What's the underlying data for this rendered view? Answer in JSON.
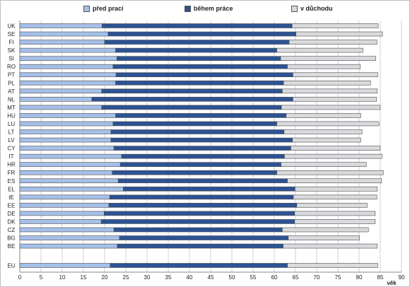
{
  "chart_data": {
    "type": "bar",
    "orientation": "horizontal",
    "stacked": true,
    "xlabel": "věk",
    "xlim": [
      0,
      90
    ],
    "xticks": [
      0,
      5,
      10,
      15,
      20,
      25,
      30,
      35,
      40,
      45,
      50,
      55,
      60,
      65,
      70,
      75,
      80,
      85,
      90
    ],
    "grid": "vertical",
    "legend_position": "top",
    "categories": [
      "UK",
      "SE",
      "FI",
      "SK",
      "SI",
      "RO",
      "PT",
      "PL",
      "AT",
      "NL",
      "MT",
      "HU",
      "LU",
      "LT",
      "LV",
      "CY",
      "IT",
      "HR",
      "FR",
      "ES",
      "EL",
      "IE",
      "EE",
      "DE",
      "DK",
      "CZ",
      "BG",
      "BE",
      "EU"
    ],
    "series": [
      {
        "name": "před prací",
        "color": "#a5c0e8",
        "values": [
          19.4,
          20.8,
          20.0,
          22.6,
          22.9,
          22.0,
          22.7,
          22.6,
          19.3,
          17.0,
          19.3,
          22.6,
          22.0,
          21.5,
          21.5,
          22.2,
          24.0,
          23.7,
          21.8,
          23.2,
          24.4,
          21.2,
          21.0,
          19.9,
          19.2,
          22.2,
          23.5,
          23.0,
          21.3
        ]
      },
      {
        "name": "během práce",
        "color": "#2c5393",
        "values": [
          44.8,
          44.3,
          43.5,
          38.0,
          38.6,
          41.1,
          41.7,
          39.6,
          42.6,
          47.4,
          42.4,
          40.2,
          38.6,
          40.8,
          42.8,
          41.7,
          38.4,
          37.9,
          38.8,
          39.9,
          40.5,
          43.3,
          44.3,
          44.9,
          45.6,
          39.7,
          39.8,
          39.1,
          41.8
        ]
      },
      {
        "name": "v důchodu",
        "color": "#d8dadd",
        "values": [
          20.3,
          20.4,
          20.7,
          20.3,
          22.4,
          17.2,
          20.0,
          20.5,
          22.4,
          19.7,
          23.3,
          17.6,
          24.1,
          18.4,
          16.1,
          21.1,
          23.0,
          20.1,
          25.1,
          22.2,
          19.4,
          19.7,
          16.6,
          19.0,
          19.0,
          20.3,
          16.8,
          22.2,
          21.3
        ]
      }
    ]
  }
}
